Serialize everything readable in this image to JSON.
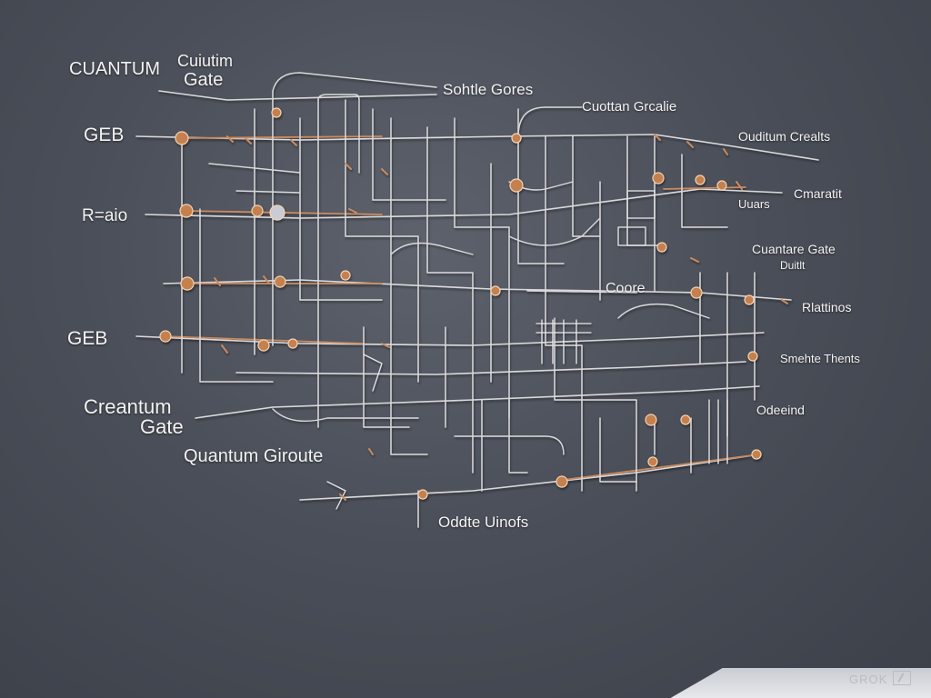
{
  "labels": {
    "quantum_caps": "CUANTUM",
    "gate_top": "Gate",
    "cuiutim": "Cuiutim",
    "geb_1": "GEB",
    "r_ratio": "R=aio",
    "geb_2": "GEB",
    "creantum": "Creantum",
    "gate_left": "Gate",
    "quantum_giroute": "Quantum Giroute",
    "sohtle_gores": "Sohtle Gores",
    "cuottan_grcalie": "Cuottan Grcalie",
    "ouditum_crealts": "Ouditum Crealts",
    "cmaratit": "Cmaratit",
    "uuars": "Uuars",
    "cuantare_gate": "Cuantare Gate",
    "duitlt": "Duitlt",
    "coore": "Coore",
    "rlattinos": "Rlattinos",
    "smehte_thents": "Smehte Thents",
    "odeeind": "Odeeind",
    "oddte_uinofs": "Oddte Uinofs"
  },
  "watermark": "GROK",
  "colors": {
    "wire": "#d9d9dc",
    "copper": "#c98a5e",
    "node": "#d08a55",
    "wall": "#474b55"
  }
}
